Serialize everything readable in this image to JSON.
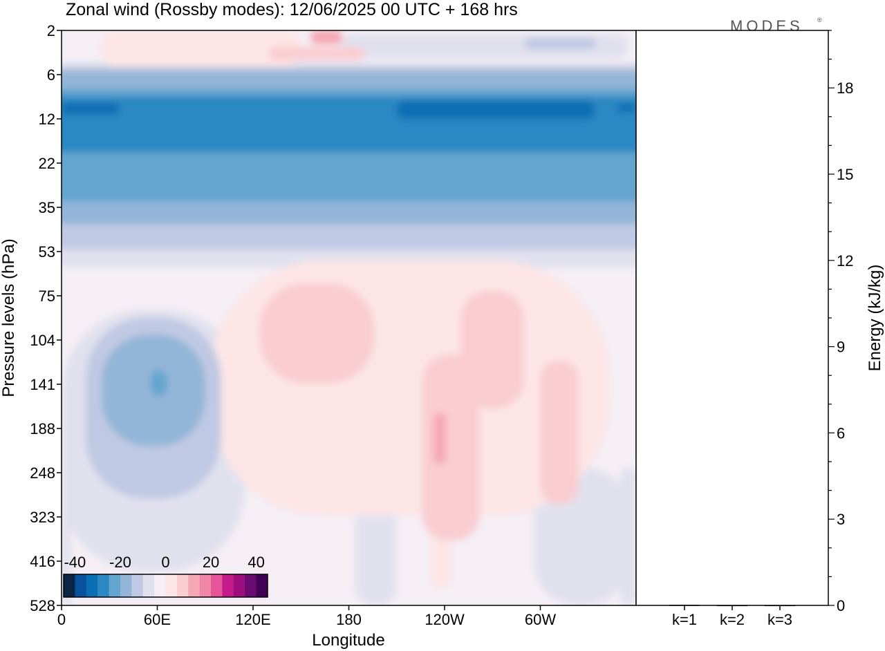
{
  "chart_data": {
    "type": "heatmap",
    "title": "Zonal wind (Rossby modes):  12/06/2025  00 UTC  + 168 hrs",
    "brand": "MODES",
    "brand_mark": "®",
    "xlabel": "Longitude",
    "ylabel": "Pressure levels (hPa)",
    "x_ticks": [
      "0",
      "60E",
      "120E",
      "180",
      "120W",
      "60W"
    ],
    "y_ticks": [
      "2",
      "6",
      "12",
      "22",
      "35",
      "53",
      "75",
      "104",
      "141",
      "188",
      "248",
      "323",
      "416",
      "528"
    ],
    "colorbar": {
      "tick_labels": [
        "-40",
        "-20",
        "0",
        "20",
        "40"
      ],
      "levels": [
        -40,
        -35,
        -30,
        -25,
        -20,
        -15,
        -10,
        -5,
        0,
        5,
        10,
        15,
        20,
        25,
        30,
        35,
        40
      ],
      "colors": [
        "#0b2545",
        "#08519c",
        "#0a6eb4",
        "#2c88c2",
        "#63a5cf",
        "#93b5d7",
        "#c0c9e3",
        "#e1e1ee",
        "#f5eef5",
        "#fde5e5",
        "#f9cdd1",
        "#f5a8b4",
        "#f187a8",
        "#e6549a",
        "#c51b8a",
        "#9e0d7e",
        "#6a0b72",
        "#3f0056"
      ]
    },
    "contour_fields": [
      {
        "level": "-5",
        "color": "#e1e1ee",
        "regions": [
          {
            "lon": [
              0,
              360
            ],
            "p": [
              4.4,
              60
            ]
          },
          {
            "lon": [
              175,
              355
            ],
            "p": [
              2.2,
              4.0
            ]
          },
          {
            "lon": [
              0,
              115
            ],
            "p": [
              83,
              440
            ]
          },
          {
            "lon": [
              0,
              6
            ],
            "p": [
              220,
              528
            ]
          },
          {
            "lon": [
              184,
              210
            ],
            "p": [
              300,
              528
            ]
          },
          {
            "lon": [
              296,
              355
            ],
            "p": [
              240,
              528
            ]
          },
          {
            "lon": [
              350,
              360
            ],
            "p": [
              240,
              528
            ]
          }
        ]
      },
      {
        "level": "5",
        "color": "#fde5e5",
        "regions": [
          {
            "lon": [
              25,
              150
            ],
            "p": [
              2,
              5.0
            ]
          },
          {
            "lon": [
              93,
              343
            ],
            "p": [
              57,
              320
            ]
          },
          {
            "lon": [
              232,
              244
            ],
            "p": [
              150,
              480
            ]
          }
        ]
      },
      {
        "level": "-10",
        "color": "#c0c9e3",
        "regions": [
          {
            "lon": [
              0,
              360
            ],
            "p": [
              4.9,
              52
            ]
          },
          {
            "lon": [
              15,
              100
            ],
            "p": [
              88,
              290
            ]
          },
          {
            "lon": [
              290,
              335
            ],
            "p": [
              2.4,
              3.2
            ]
          }
        ]
      },
      {
        "level": "10",
        "color": "#f9cdd1",
        "regions": [
          {
            "lon": [
              130,
              190
            ],
            "p": [
              3.0,
              4.2
            ]
          },
          {
            "lon": [
              124,
              196
            ],
            "p": [
              68,
              140
            ]
          },
          {
            "lon": [
              226,
              262
            ],
            "p": [
              115,
              370
            ]
          },
          {
            "lon": [
              250,
              290
            ],
            "p": [
              72,
              165
            ]
          },
          {
            "lon": [
              300,
              324
            ],
            "p": [
              120,
              300
            ]
          }
        ]
      },
      {
        "level": "-15",
        "color": "#93b5d7",
        "regions": [
          {
            "lon": [
              0,
              360
            ],
            "p": [
              5.5,
              41
            ]
          },
          {
            "lon": [
              25,
              90
            ],
            "p": [
              100,
              210
            ]
          }
        ]
      },
      {
        "level": "15",
        "color": "#f5a8b4",
        "regions": [
          {
            "lon": [
              156,
              176
            ],
            "p": [
              2.0,
              2.8
            ]
          },
          {
            "lon": [
              233,
              241
            ],
            "p": [
              170,
              235
            ]
          }
        ]
      },
      {
        "level": "-20",
        "color": "#63a5cf",
        "regions": [
          {
            "lon": [
              0,
              360
            ],
            "p": [
              7.5,
              33
            ]
          },
          {
            "lon": [
              56,
              66
            ],
            "p": [
              128,
              152
            ]
          }
        ]
      },
      {
        "level": "-25",
        "color": "#2c88c2",
        "regions": [
          {
            "lon": [
              0,
              360
            ],
            "p": [
              8.4,
              19
            ]
          }
        ]
      },
      {
        "level": "-30",
        "color": "#0a6eb4",
        "regions": [
          {
            "lon": [
              0,
              36
            ],
            "p": [
              9.3,
              11.2
            ]
          },
          {
            "lon": [
              210,
              334
            ],
            "p": [
              9.0,
              12.0
            ]
          },
          {
            "lon": [
              348,
              360
            ],
            "p": [
              9.4,
              10.8
            ]
          }
        ]
      }
    ],
    "energy_panel": {
      "ylabel": "Energy (kJ/kg)",
      "ylim": [
        0,
        20
      ],
      "y_ticks": [
        "0",
        "3",
        "6",
        "9",
        "12",
        "15",
        "18"
      ],
      "categories": [
        "k=1",
        "k=2",
        "k=3"
      ],
      "values": [
        0.02,
        0.01,
        0.01
      ]
    }
  }
}
